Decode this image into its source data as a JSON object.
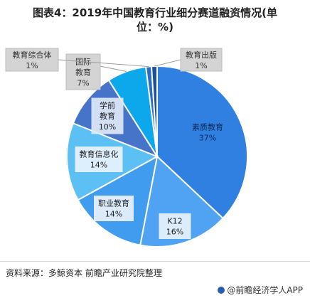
{
  "title_line1": "图表4：2019年中国教育行业细分赛道融资情况(单",
  "title_line2": "位：%)",
  "source": "资料来源：多鲸资本  前瞻产业研究院整理",
  "brand": "@前瞻经济学人APP",
  "chart_data": {
    "type": "pie",
    "categories": [
      "素质教育",
      "K12",
      "职业教育",
      "教育信息化",
      "学前教育",
      "国际教育",
      "教育综合体",
      "教育出版"
    ],
    "values": [
      37,
      16,
      14,
      14,
      10,
      7,
      1,
      1
    ],
    "colors": [
      "#2f80e0",
      "#4fa3f2",
      "#3f9cee",
      "#5cc0f5",
      "#4574c9",
      "#0da8ec",
      "#2b6cc4",
      "#1d4f9a"
    ],
    "labels": [
      "素质教育\n37%",
      "K12\n16%",
      "职业教育\n14%",
      "教育信息化\n14%",
      "学前\n教育\n10%",
      "国际\n教育\n7%",
      "教育综合体\n1%",
      "教育出版\n1%"
    ]
  }
}
